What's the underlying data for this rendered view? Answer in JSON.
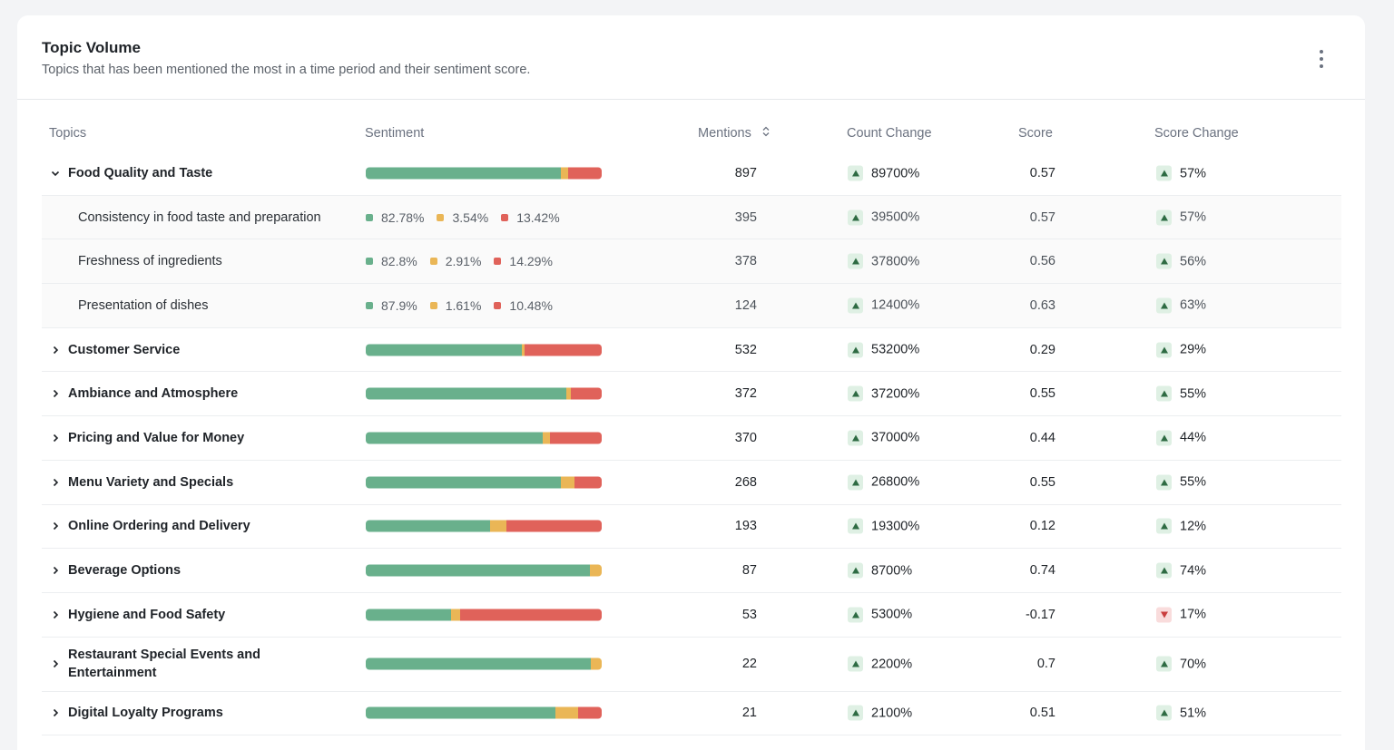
{
  "card": {
    "title": "Topic Volume",
    "subtitle": "Topics that has been mentioned the most in a time period and their sentiment score."
  },
  "columns": {
    "topics": "Topics",
    "sentiment": "Sentiment",
    "mentions": "Mentions",
    "count_change": "Count Change",
    "score": "Score",
    "score_change": "Score Change"
  },
  "colors": {
    "positive": "#69b08c",
    "neutral": "#eab656",
    "negative": "#e0625a"
  },
  "rows": [
    {
      "type": "parent",
      "expanded": true,
      "topic": "Food Quality and Taste",
      "sentiment": [
        82.8,
        3.0,
        14.2
      ],
      "mentions": "897",
      "count_change": "89700%",
      "count_dir": "up",
      "score": "0.57",
      "score_change": "57%",
      "score_dir": "up"
    },
    {
      "type": "sub",
      "topic": "Consistency in food taste and preparation",
      "pct_labels": [
        "82.78%",
        "3.54%",
        "13.42%"
      ],
      "mentions": "395",
      "count_change": "39500%",
      "count_dir": "up",
      "score": "0.57",
      "score_change": "57%",
      "score_dir": "up"
    },
    {
      "type": "sub",
      "topic": "Freshness of ingredients",
      "pct_labels": [
        "82.8%",
        "2.91%",
        "14.29%"
      ],
      "mentions": "378",
      "count_change": "37800%",
      "count_dir": "up",
      "score": "0.56",
      "score_change": "56%",
      "score_dir": "up"
    },
    {
      "type": "sub",
      "topic": "Presentation of dishes",
      "pct_labels": [
        "87.9%",
        "1.61%",
        "10.48%"
      ],
      "mentions": "124",
      "count_change": "12400%",
      "count_dir": "up",
      "score": "0.63",
      "score_change": "63%",
      "score_dir": "up"
    },
    {
      "type": "parent",
      "expanded": false,
      "topic": "Customer Service",
      "sentiment": [
        66,
        1.5,
        32.5
      ],
      "mentions": "532",
      "count_change": "53200%",
      "count_dir": "up",
      "score": "0.29",
      "score_change": "29%",
      "score_dir": "up"
    },
    {
      "type": "parent",
      "expanded": false,
      "topic": "Ambiance and Atmosphere",
      "sentiment": [
        85,
        2,
        13
      ],
      "mentions": "372",
      "count_change": "37200%",
      "count_dir": "up",
      "score": "0.55",
      "score_change": "55%",
      "score_dir": "up"
    },
    {
      "type": "parent",
      "expanded": false,
      "topic": "Pricing and Value for Money",
      "sentiment": [
        75,
        3,
        22
      ],
      "mentions": "370",
      "count_change": "37000%",
      "count_dir": "up",
      "score": "0.44",
      "score_change": "44%",
      "score_dir": "up"
    },
    {
      "type": "parent",
      "expanded": false,
      "topic": "Menu Variety and Specials",
      "sentiment": [
        82.5,
        6,
        11.5
      ],
      "mentions": "268",
      "count_change": "26800%",
      "count_dir": "up",
      "score": "0.55",
      "score_change": "55%",
      "score_dir": "up"
    },
    {
      "type": "parent",
      "expanded": false,
      "topic": "Online Ordering and Delivery",
      "sentiment": [
        52.5,
        7,
        40.5
      ],
      "mentions": "193",
      "count_change": "19300%",
      "count_dir": "up",
      "score": "0.12",
      "score_change": "12%",
      "score_dir": "up"
    },
    {
      "type": "parent",
      "expanded": false,
      "topic": "Beverage Options",
      "sentiment": [
        95,
        5,
        0
      ],
      "mentions": "87",
      "count_change": "8700%",
      "count_dir": "up",
      "score": "0.74",
      "score_change": "74%",
      "score_dir": "up"
    },
    {
      "type": "parent",
      "expanded": false,
      "topic": "Hygiene and Food Safety",
      "sentiment": [
        36,
        4,
        60
      ],
      "mentions": "53",
      "count_change": "5300%",
      "count_dir": "up",
      "score": "-0.17",
      "score_change": "17%",
      "score_dir": "down"
    },
    {
      "type": "parent",
      "expanded": false,
      "topic": "Restaurant Special Events and Entertainment",
      "sentiment": [
        95.5,
        4.5,
        0
      ],
      "mentions": "22",
      "count_change": "2200%",
      "count_dir": "up",
      "score": "0.7",
      "score_change": "70%",
      "score_dir": "up"
    },
    {
      "type": "parent",
      "expanded": false,
      "topic": "Digital Loyalty Programs",
      "sentiment": [
        80.5,
        9.5,
        10
      ],
      "mentions": "21",
      "count_change": "2100%",
      "count_dir": "up",
      "score": "0.51",
      "score_change": "51%",
      "score_dir": "up"
    }
  ]
}
